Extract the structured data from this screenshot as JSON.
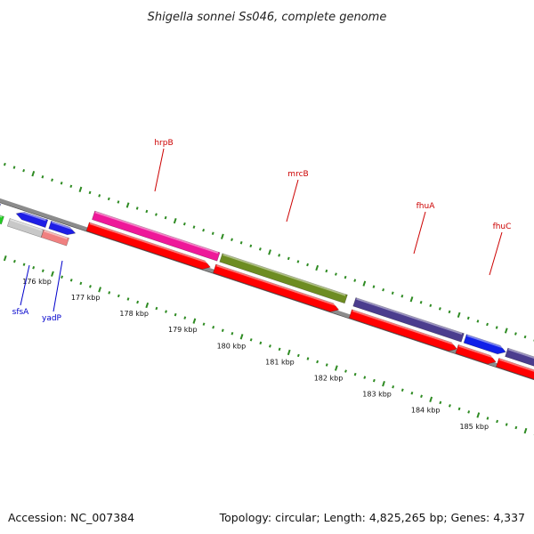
{
  "title": "Shigella sonnei Ss046, complete genome",
  "footer": {
    "accession": "Accession: NC_007384",
    "summary": "Topology: circular; Length: 4,825,265 bp; Genes: 4,337"
  },
  "colors": {
    "backbone": "#8c8c8c",
    "cds_red": "#ff0000",
    "ticks": "#2e8b22",
    "label_red": "#cc0000",
    "label_blue": "#0000cc",
    "hrpB": "#ee1899",
    "mrcB": "#6d8c22",
    "fhuA": "#4b3d8e",
    "fhuC": "#1020e8",
    "sfsA": "#1e1ee6",
    "yadP": "#f08080",
    "grey_gene": "#c8c8c8",
    "green_gene": "#22cc22"
  },
  "tick_labels": [
    "176 kbp",
    "177 kbp",
    "178 kbp",
    "179 kbp",
    "180 kbp",
    "181 kbp",
    "182 kbp",
    "183 kbp",
    "184 kbp",
    "185 kbp"
  ],
  "gene_labels": [
    {
      "name": "hrpB",
      "color": "label_red"
    },
    {
      "name": "mrcB",
      "color": "label_red"
    },
    {
      "name": "fhuA",
      "color": "label_red"
    },
    {
      "name": "fhuC",
      "color": "label_red"
    },
    {
      "name": "sfsA",
      "color": "label_blue"
    },
    {
      "name": "yadP",
      "color": "label_blue"
    }
  ]
}
